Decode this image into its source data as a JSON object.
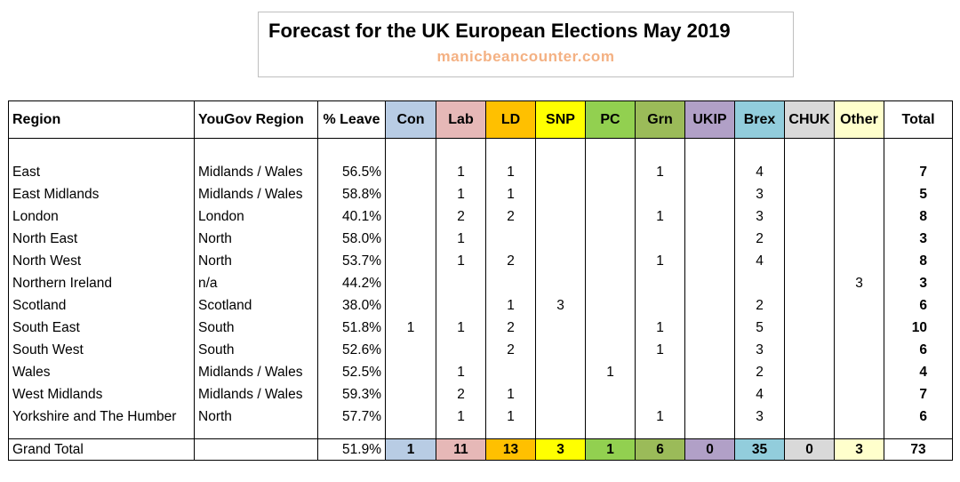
{
  "title": "Forecast for the UK European Elections May 2019",
  "subtitle": "manicbeancounter.com",
  "headers": [
    "Region",
    "YouGov Region",
    "% Leave",
    "Con",
    "Lab",
    "LD",
    "SNP",
    "PC",
    "Grn",
    "UKIP",
    "Brex",
    "CHUK",
    "Other",
    "Total"
  ],
  "party_colors": [
    "#b8cce4",
    "#e6b8b7",
    "#ffc000",
    "#ffff00",
    "#92d050",
    "#9bbb59",
    "#b1a0c7",
    "#92cddc",
    "#d9d9d9",
    "#ffffcc"
  ],
  "rows": [
    [
      "East",
      "Midlands / Wales",
      "56.5%",
      "",
      "1",
      "1",
      "",
      "",
      "1",
      "",
      "4",
      "",
      "",
      "7"
    ],
    [
      "East Midlands",
      "Midlands / Wales",
      "58.8%",
      "",
      "1",
      "1",
      "",
      "",
      "",
      "",
      "3",
      "",
      "",
      "5"
    ],
    [
      "London",
      "London",
      "40.1%",
      "",
      "2",
      "2",
      "",
      "",
      "1",
      "",
      "3",
      "",
      "",
      "8"
    ],
    [
      "North East",
      "North",
      "58.0%",
      "",
      "1",
      "",
      "",
      "",
      "",
      "",
      "2",
      "",
      "",
      "3"
    ],
    [
      "North West",
      "North",
      "53.7%",
      "",
      "1",
      "2",
      "",
      "",
      "1",
      "",
      "4",
      "",
      "",
      "8"
    ],
    [
      "Northern Ireland",
      "n/a",
      "44.2%",
      "",
      "",
      "",
      "",
      "",
      "",
      "",
      "",
      "",
      "3",
      "3"
    ],
    [
      "Scotland",
      "Scotland",
      "38.0%",
      "",
      "",
      "1",
      "3",
      "",
      "",
      "",
      "2",
      "",
      "",
      "6"
    ],
    [
      "South East",
      "South",
      "51.8%",
      "1",
      "1",
      "2",
      "",
      "",
      "1",
      "",
      "5",
      "",
      "",
      "10"
    ],
    [
      "South West",
      "South",
      "52.6%",
      "",
      "",
      "2",
      "",
      "",
      "1",
      "",
      "3",
      "",
      "",
      "6"
    ],
    [
      "Wales",
      "Midlands / Wales",
      "52.5%",
      "",
      "1",
      "",
      "",
      "1",
      "",
      "",
      "2",
      "",
      "",
      "4"
    ],
    [
      "West Midlands",
      "Midlands / Wales",
      "59.3%",
      "",
      "2",
      "1",
      "",
      "",
      "",
      "",
      "4",
      "",
      "",
      "7"
    ],
    [
      "Yorkshire and The Humber",
      "North",
      "57.7%",
      "",
      "1",
      "1",
      "",
      "",
      "1",
      "",
      "3",
      "",
      "",
      "6"
    ]
  ],
  "grand_total": [
    "Grand Total",
    "",
    "51.9%",
    "1",
    "11",
    "13",
    "3",
    "1",
    "6",
    "0",
    "35",
    "0",
    "3",
    "73"
  ]
}
